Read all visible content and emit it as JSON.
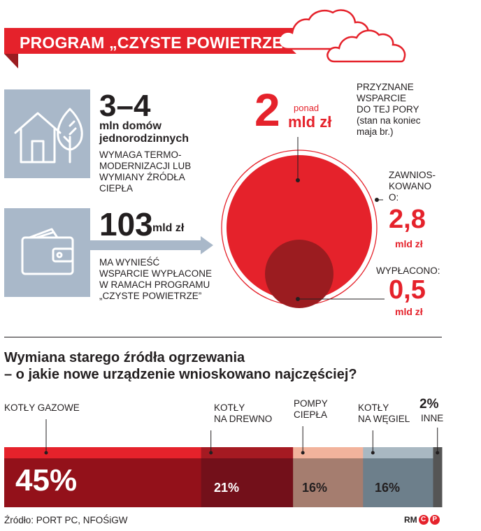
{
  "banner": {
    "title": "PROGRAM „CZYSTE POWIETRZE”"
  },
  "stats": [
    {
      "value": "3–4",
      "unit": "mln domów\njednorodzinnych",
      "desc": "WYMAGA TERMO-\nMODERNIZACJI LUB\nWYMIANY ŹRÓDŁA\nCIEPŁA",
      "icon": "house-tree-icon"
    },
    {
      "value": "103",
      "unit": "mld zł",
      "desc": "MA WYNIEŚĆ\nWSPARCIE WYPŁACONE\nW RAMACH PROGRAMU\n„CZYSTE POWIETRZE”",
      "icon": "wallet-icon"
    }
  ],
  "circles": {
    "granted": {
      "value": "2",
      "prefix": "ponad",
      "unit": "mld zł",
      "label": "PRZYZNANE\nWSPARCIE\nDO TEJ PORY",
      "note": "(stan na koniec\nmaja br.)"
    },
    "applied": {
      "label": "ZAWNIOS-\nKOWANO\nO:",
      "value": "2,8",
      "unit": "mld zł"
    },
    "paid": {
      "label": "WYPŁACONO:",
      "value": "0,5",
      "unit": "mld zł"
    }
  },
  "chart_title": "Wymiana starego źródła ogrzewania\n– o jakie nowe urządzenie wnioskowano najczęściej?",
  "chart_data": {
    "type": "bar",
    "categories": [
      "KOTŁY GAZOWE",
      "KOTŁY NA DREWNO",
      "POMPY CIEPŁA",
      "KOTŁY NA WĘGIEL",
      "INNE"
    ],
    "values": [
      45,
      21,
      16,
      16,
      2
    ],
    "value_labels": [
      "45%",
      "21%",
      "16%",
      "16%",
      "2%"
    ],
    "colors_top": [
      "#e5222b",
      "#a51a22",
      "#f2b39c",
      "#a9b8c2",
      "#555555"
    ],
    "colors_bottom": [
      "#93111a",
      "#73101a",
      "#a57d6f",
      "#6d7f8b",
      "#555555"
    ]
  },
  "source": "Źródło: PORT PC, NFOŚiGW",
  "credit": {
    "initials": "RM",
    "c_mark": "C",
    "p_mark": "P"
  },
  "colors": {
    "red": "#e5222b",
    "dark_red": "#9b1c20",
    "slate": "#a9b8c9"
  }
}
